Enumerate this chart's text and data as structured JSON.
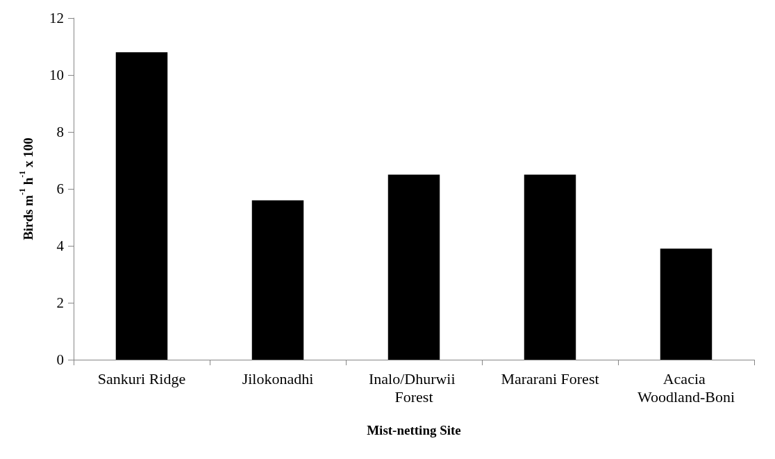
{
  "chart_data": {
    "type": "bar",
    "xlabel": "Mist-netting Site",
    "ylabel": "Birds m$^{-1}$ h$^{-1}$ x 100",
    "categories": [
      "Sankuri Ridge",
      "Jilokonadhi",
      "Inalo/Dhurwii Forest",
      "Mararani Forest",
      "Acacia Woodland-Boni"
    ],
    "values": [
      10.8,
      5.6,
      6.5,
      6.5,
      3.9
    ],
    "color": "#000000",
    "ylim": [
      0,
      12
    ],
    "yticks": [
      0,
      2,
      4,
      6,
      8,
      10,
      12
    ],
    "grid": false
  }
}
